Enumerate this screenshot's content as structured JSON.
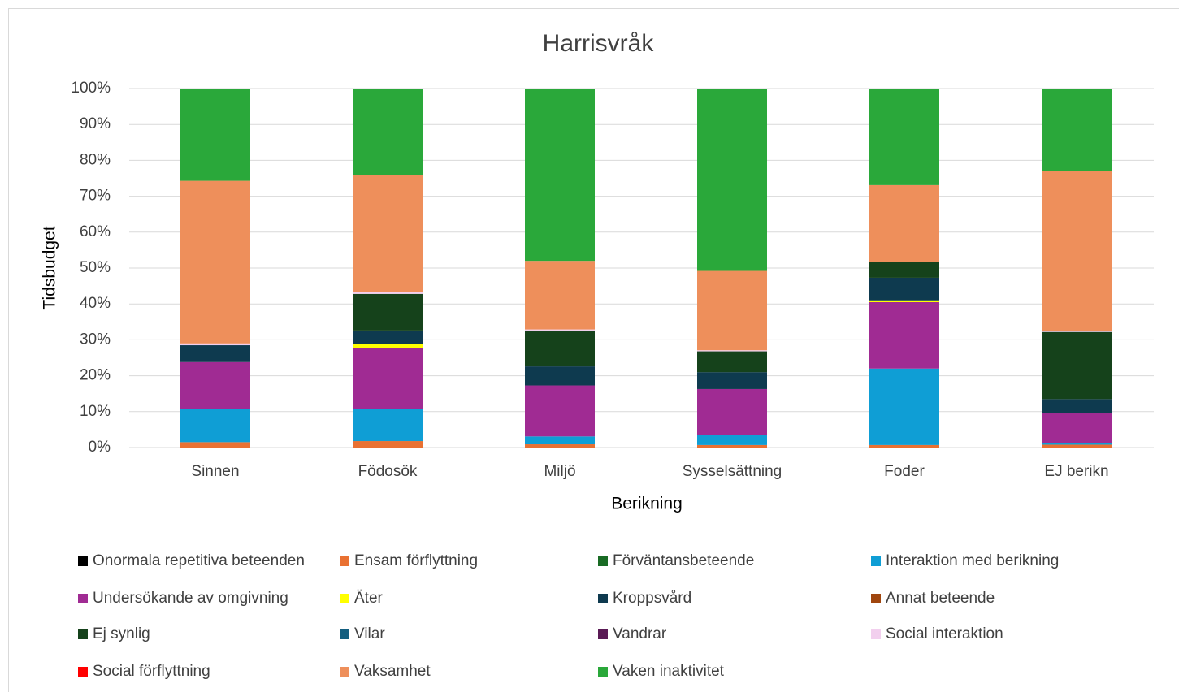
{
  "chart_data": {
    "type": "stacked_bar",
    "title": "Harrisvråk",
    "x_label": "Berikning",
    "y_label": "Tidsbudget",
    "categories": [
      "Sinnen",
      "Födosök",
      "Miljö",
      "Sysselsättning",
      "Foder",
      "EJ berikn"
    ],
    "ylim": [
      0,
      100
    ],
    "yticks": [
      {
        "value": 0,
        "label": "0%"
      },
      {
        "value": 10,
        "label": "10%"
      },
      {
        "value": 20,
        "label": "20%"
      },
      {
        "value": 30,
        "label": "30%"
      },
      {
        "value": 40,
        "label": "40%"
      },
      {
        "value": 50,
        "label": "50%"
      },
      {
        "value": 60,
        "label": "60%"
      },
      {
        "value": 70,
        "label": "70%"
      },
      {
        "value": 80,
        "label": "80%"
      },
      {
        "value": 90,
        "label": "90%"
      },
      {
        "value": 100,
        "label": "100%"
      }
    ],
    "grid": true,
    "legend": "bottom",
    "series": [
      {
        "name": "Onormala repetitiva beteenden",
        "color": "#000000",
        "values": [
          0,
          0,
          0,
          0,
          0,
          0
        ]
      },
      {
        "name": "Ensam förflyttning",
        "color": "#e97132",
        "values": [
          1.5,
          1.8,
          0.9,
          0.7,
          0.7,
          0.8
        ]
      },
      {
        "name": "Förväntansbeteende",
        "color": "#196b24",
        "values": [
          0,
          0,
          0,
          0,
          0,
          0
        ]
      },
      {
        "name": "Interaktion med berikning",
        "color": "#0f9ed5",
        "values": [
          9.3,
          9,
          2.2,
          2.9,
          21.3,
          0.4
        ]
      },
      {
        "name": "Undersökande av omgivning",
        "color": "#a02b93",
        "values": [
          13,
          17,
          14.2,
          12.7,
          18.5,
          8.3
        ]
      },
      {
        "name": "Äter",
        "color": "#ffff00",
        "values": [
          0,
          1,
          0,
          0,
          0.5,
          0
        ]
      },
      {
        "name": "Kroppsvård",
        "color": "#0e3a4f",
        "values": [
          4.7,
          3.8,
          5.3,
          4.7,
          6.3,
          4
        ]
      },
      {
        "name": "Annat beteende",
        "color": "#a0460e",
        "values": [
          0,
          0,
          0,
          0,
          0,
          0
        ]
      },
      {
        "name": "Ej synlig",
        "color": "#15421b",
        "values": [
          0,
          10.2,
          10,
          5.8,
          4.5,
          18.7
        ]
      },
      {
        "name": "Vilar",
        "color": "#135e7f",
        "values": [
          0,
          0,
          0,
          0,
          0,
          0
        ]
      },
      {
        "name": "Vandrar",
        "color": "#5a1a55",
        "values": [
          0,
          0,
          0,
          0,
          0,
          0
        ]
      },
      {
        "name": "Social interaktion",
        "color": "#f2cfee",
        "values": [
          0.5,
          0.6,
          0.3,
          0.3,
          0,
          0.3
        ]
      },
      {
        "name": "Social förflyttning",
        "color": "#ff0000",
        "values": [
          0,
          0,
          0,
          0,
          0,
          0
        ]
      },
      {
        "name": "Vaksamhet",
        "color": "#ee8f5b",
        "values": [
          45.3,
          32.4,
          19.1,
          22.1,
          21.3,
          44.6
        ]
      },
      {
        "name": "Vaken inaktivitet",
        "color": "#2aa83a",
        "values": [
          25.7,
          24.2,
          48,
          50.8,
          26.9,
          22.9
        ]
      }
    ]
  }
}
